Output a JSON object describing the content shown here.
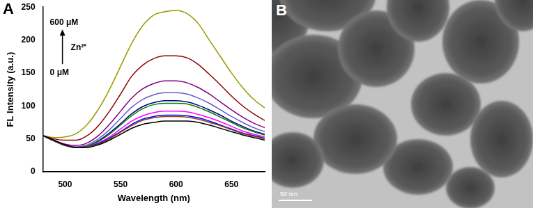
{
  "chart_data": {
    "type": "line",
    "panel_label": "A",
    "x_label": "Wavelength (nm)",
    "y_label": "FL Intensity (a.u.)",
    "annotations": [
      "600 μM",
      "Zn²⁺",
      "0 μM"
    ],
    "x": [
      480,
      490,
      500,
      510,
      520,
      530,
      540,
      550,
      560,
      570,
      580,
      590,
      600,
      610,
      620,
      630,
      640,
      650,
      660,
      670,
      680
    ],
    "series": [
      {
        "color": "#000000",
        "values": [
          55,
          48,
          41,
          37,
          37,
          41,
          48,
          57,
          66,
          72,
          75,
          77,
          77,
          77,
          75,
          71,
          66,
          61,
          56,
          52,
          48
        ]
      },
      {
        "color": "#8b4513",
        "values": [
          55,
          47,
          40,
          37,
          38,
          42,
          50,
          60,
          70,
          78,
          82,
          84,
          84,
          83,
          80,
          75,
          70,
          64,
          58,
          54,
          50
        ]
      },
      {
        "color": "#0000ff",
        "values": [
          55,
          47,
          40,
          37,
          38,
          43,
          51,
          61,
          72,
          80,
          84,
          86,
          86,
          85,
          82,
          77,
          71,
          65,
          59,
          55,
          51
        ]
      },
      {
        "color": "#ff00ff",
        "values": [
          55,
          47,
          40,
          37,
          38,
          44,
          53,
          65,
          77,
          85,
          90,
          92,
          92,
          91,
          87,
          82,
          76,
          69,
          62,
          57,
          53
        ]
      },
      {
        "color": "#008000",
        "values": [
          55,
          47,
          40,
          37,
          39,
          46,
          57,
          71,
          85,
          96,
          102,
          104,
          104,
          103,
          98,
          91,
          83,
          75,
          67,
          61,
          56
        ]
      },
      {
        "color": "#000080",
        "values": [
          55,
          47,
          40,
          37,
          39,
          47,
          59,
          73,
          88,
          99,
          105,
          108,
          108,
          106,
          101,
          94,
          86,
          77,
          69,
          62,
          57
        ]
      },
      {
        "color": "#6a5acd",
        "values": [
          55,
          47,
          41,
          38,
          41,
          50,
          64,
          81,
          98,
          110,
          117,
          120,
          120,
          118,
          112,
          104,
          94,
          84,
          75,
          67,
          61
        ]
      },
      {
        "color": "#800080",
        "values": [
          55,
          48,
          42,
          40,
          44,
          55,
          72,
          92,
          112,
          126,
          134,
          138,
          138,
          135,
          128,
          118,
          106,
          94,
          83,
          74,
          67
        ]
      },
      {
        "color": "#8b0000",
        "values": [
          55,
          50,
          48,
          48,
          55,
          70,
          92,
          118,
          145,
          162,
          172,
          176,
          176,
          173,
          163,
          148,
          132,
          115,
          100,
          88,
          78
        ]
      },
      {
        "color": "#999900",
        "values": [
          55,
          52,
          53,
          58,
          72,
          95,
          125,
          160,
          195,
          222,
          238,
          243,
          245,
          240,
          225,
          200,
          175,
          150,
          128,
          110,
          97
        ]
      }
    ],
    "xlim": [
      480,
      680
    ],
    "xticks": [
      500,
      550,
      600,
      650
    ],
    "ylim": [
      0,
      250
    ],
    "yticks": [
      0,
      50,
      100,
      150,
      200,
      250
    ],
    "grid": false
  },
  "image": {
    "panel_label": "B",
    "scale_bar": "50 nm"
  }
}
